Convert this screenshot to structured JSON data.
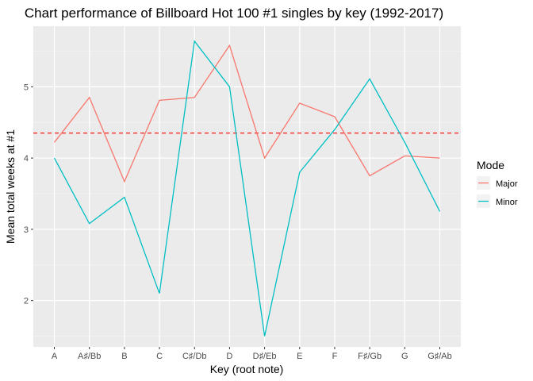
{
  "chart_data": {
    "type": "line",
    "title": "Chart performance of Billboard Hot 100 #1 singles by key (1992-2017)",
    "xlabel": "Key (root note)",
    "ylabel": "Mean total weeks at #1",
    "categories": [
      "A",
      "A♯/Bb",
      "B",
      "C",
      "C♯/Db",
      "D",
      "D♯/Eb",
      "E",
      "F",
      "F♯/Gb",
      "G",
      "G♯/Ab"
    ],
    "ylim": [
      1.35,
      5.85
    ],
    "yticks": [
      2,
      3,
      4,
      5
    ],
    "yticklabels": [
      "2",
      "3",
      "4",
      "5"
    ],
    "series": [
      {
        "name": "Major",
        "color": "#F8766D",
        "values": [
          4.22,
          4.85,
          3.67,
          4.81,
          4.85,
          5.58,
          4.0,
          4.77,
          4.58,
          3.75,
          4.03,
          4.0
        ]
      },
      {
        "name": "Minor",
        "color": "#00BFC4",
        "values": [
          4.0,
          3.08,
          3.45,
          2.1,
          5.64,
          5.0,
          1.5,
          3.8,
          4.4,
          5.11,
          4.22,
          3.25
        ]
      }
    ],
    "reference_line": {
      "y": 4.35,
      "color": "#FF0000",
      "style": "dashed"
    },
    "grid": true,
    "legend": {
      "title": "Mode",
      "position": "right"
    }
  }
}
